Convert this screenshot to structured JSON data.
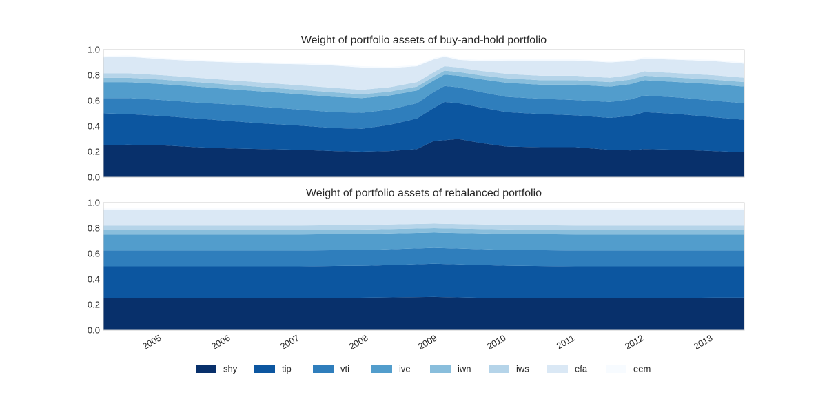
{
  "chart_data": [
    {
      "type": "area",
      "stacked": true,
      "title": "Weight of portfolio assets of buy-and-hold portfolio",
      "xlabel": "",
      "ylabel": "",
      "xlim": [
        2004.15,
        2013.45
      ],
      "ylim": [
        0,
        1
      ],
      "yticks": [
        "0.0",
        "0.2",
        "0.4",
        "0.6",
        "0.8",
        "1.0"
      ],
      "grid": false,
      "x": [
        2004.15,
        2004.5,
        2005.0,
        2005.5,
        2006.0,
        2006.5,
        2007.0,
        2007.5,
        2007.9,
        2008.3,
        2008.7,
        2008.95,
        2009.1,
        2009.3,
        2009.6,
        2010.0,
        2010.5,
        2011.0,
        2011.5,
        2011.8,
        2012.0,
        2012.5,
        2013.0,
        2013.45
      ],
      "series": [
        {
          "name": "shy",
          "values": [
            0.25,
            0.255,
            0.25,
            0.235,
            0.225,
            0.22,
            0.215,
            0.205,
            0.2,
            0.205,
            0.22,
            0.285,
            0.29,
            0.3,
            0.27,
            0.24,
            0.235,
            0.235,
            0.215,
            0.21,
            0.22,
            0.215,
            0.205,
            0.195
          ]
        },
        {
          "name": "tip",
          "values": [
            0.25,
            0.24,
            0.23,
            0.225,
            0.215,
            0.2,
            0.19,
            0.18,
            0.18,
            0.205,
            0.24,
            0.26,
            0.3,
            0.28,
            0.28,
            0.27,
            0.26,
            0.25,
            0.25,
            0.27,
            0.29,
            0.28,
            0.265,
            0.255
          ]
        },
        {
          "name": "vti",
          "values": [
            0.12,
            0.125,
            0.125,
            0.125,
            0.13,
            0.13,
            0.125,
            0.125,
            0.125,
            0.12,
            0.12,
            0.125,
            0.125,
            0.125,
            0.12,
            0.12,
            0.12,
            0.12,
            0.125,
            0.13,
            0.13,
            0.13,
            0.13,
            0.13
          ]
        },
        {
          "name": "ive",
          "values": [
            0.125,
            0.125,
            0.125,
            0.125,
            0.12,
            0.12,
            0.12,
            0.12,
            0.115,
            0.11,
            0.1,
            0.09,
            0.09,
            0.09,
            0.1,
            0.11,
            0.11,
            0.12,
            0.12,
            0.12,
            0.12,
            0.12,
            0.13,
            0.13
          ]
        },
        {
          "name": "iwn",
          "values": [
            0.035,
            0.035,
            0.035,
            0.035,
            0.035,
            0.035,
            0.035,
            0.035,
            0.03,
            0.03,
            0.03,
            0.03,
            0.03,
            0.03,
            0.03,
            0.035,
            0.035,
            0.035,
            0.035,
            0.035,
            0.035,
            0.035,
            0.035,
            0.035
          ]
        },
        {
          "name": "iws",
          "values": [
            0.035,
            0.035,
            0.035,
            0.035,
            0.035,
            0.035,
            0.035,
            0.035,
            0.035,
            0.035,
            0.035,
            0.035,
            0.035,
            0.035,
            0.035,
            0.035,
            0.035,
            0.035,
            0.035,
            0.035,
            0.035,
            0.035,
            0.035,
            0.035
          ]
        },
        {
          "name": "efa",
          "values": [
            0.125,
            0.13,
            0.125,
            0.13,
            0.14,
            0.15,
            0.165,
            0.175,
            0.175,
            0.15,
            0.125,
            0.1,
            0.075,
            0.06,
            0.075,
            0.105,
            0.12,
            0.12,
            0.12,
            0.11,
            0.1,
            0.105,
            0.11,
            0.11
          ]
        },
        {
          "name": "eem",
          "values": [
            0.01,
            0.01,
            0.01,
            0.01,
            0.01,
            0.01,
            0.01,
            0.01,
            0.01,
            0.01,
            0.01,
            0.01,
            0.01,
            0.01,
            0.01,
            0.01,
            0.01,
            0.01,
            0.01,
            0.01,
            0.01,
            0.01,
            0.01,
            0.01
          ]
        }
      ]
    },
    {
      "type": "area",
      "stacked": true,
      "title": "Weight of portfolio assets of rebalanced portfolio",
      "xlabel": "",
      "ylabel": "",
      "xlim": [
        2004.15,
        2013.45
      ],
      "ylim": [
        0,
        1
      ],
      "yticks": [
        "0.0",
        "0.2",
        "0.4",
        "0.6",
        "0.8",
        "1.0"
      ],
      "xticks": [
        "2005",
        "2006",
        "2007",
        "2008",
        "2009",
        "2010",
        "2011",
        "2012",
        "2013"
      ],
      "grid": false,
      "x": [
        2004.15,
        2005.0,
        2006.0,
        2007.0,
        2008.0,
        2008.95,
        2010.0,
        2011.0,
        2012.0,
        2013.0,
        2013.45
      ],
      "series": [
        {
          "name": "shy",
          "values": [
            0.25,
            0.25,
            0.25,
            0.25,
            0.255,
            0.26,
            0.25,
            0.25,
            0.25,
            0.255,
            0.255
          ]
        },
        {
          "name": "tip",
          "values": [
            0.25,
            0.25,
            0.25,
            0.25,
            0.25,
            0.26,
            0.255,
            0.25,
            0.25,
            0.245,
            0.245
          ]
        },
        {
          "name": "vti",
          "values": [
            0.125,
            0.125,
            0.125,
            0.125,
            0.125,
            0.125,
            0.125,
            0.125,
            0.125,
            0.125,
            0.125
          ]
        },
        {
          "name": "ive",
          "values": [
            0.125,
            0.125,
            0.125,
            0.125,
            0.125,
            0.12,
            0.125,
            0.125,
            0.125,
            0.125,
            0.125
          ]
        },
        {
          "name": "iwn",
          "values": [
            0.035,
            0.035,
            0.035,
            0.035,
            0.035,
            0.035,
            0.035,
            0.035,
            0.035,
            0.035,
            0.035
          ]
        },
        {
          "name": "iws",
          "values": [
            0.035,
            0.035,
            0.035,
            0.035,
            0.035,
            0.035,
            0.035,
            0.035,
            0.035,
            0.035,
            0.035
          ]
        },
        {
          "name": "efa",
          "values": [
            0.125,
            0.125,
            0.125,
            0.125,
            0.12,
            0.11,
            0.12,
            0.125,
            0.125,
            0.125,
            0.125
          ]
        },
        {
          "name": "eem",
          "values": [
            0.01,
            0.01,
            0.01,
            0.01,
            0.01,
            0.01,
            0.01,
            0.01,
            0.01,
            0.01,
            0.01
          ]
        }
      ]
    }
  ],
  "legend": {
    "placement": "bottom-center",
    "entries": [
      "shy",
      "tip",
      "vti",
      "ive",
      "iwn",
      "iws",
      "efa",
      "eem"
    ]
  },
  "colors": {
    "shy": "#08306b",
    "tip": "#0c56a0",
    "vti": "#2f7ebc",
    "ive": "#529dcc",
    "iwn": "#89bedc",
    "iws": "#b5d4e9",
    "efa": "#dae8f5",
    "eem": "#f7fbff",
    "axes_edge": "#cccccc"
  }
}
